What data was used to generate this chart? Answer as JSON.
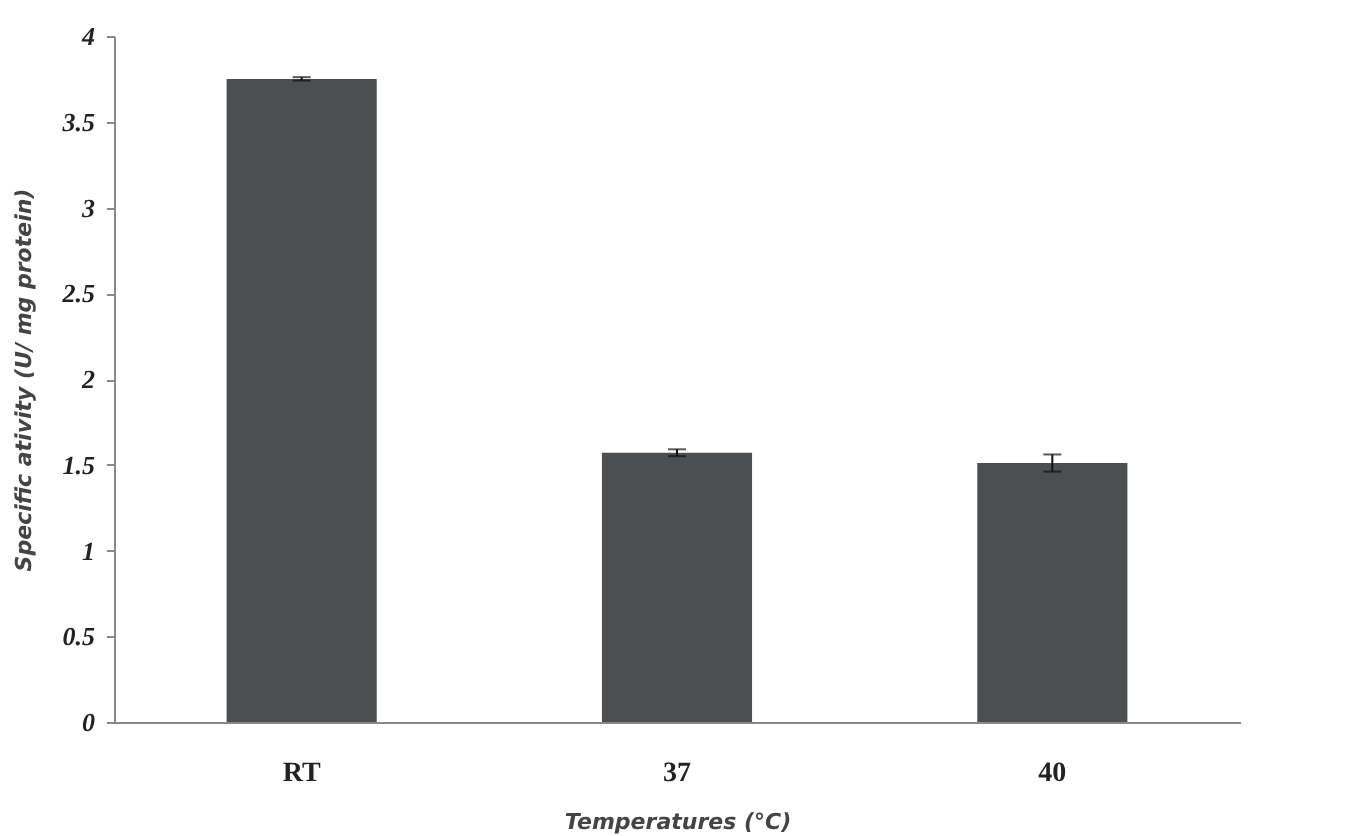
{
  "chart_data": {
    "type": "bar",
    "xlabel": "Temperatures (°C)",
    "ylabel": "Specific  ativity (U/ mg protein)",
    "categories": [
      "RT",
      "37",
      "40"
    ],
    "series": [
      {
        "color": "#4d4e50",
        "values": [
          3.75,
          1.57,
          1.51
        ],
        "errors": [
          0.01,
          0.02,
          0.05
        ]
      }
    ],
    "ylim": [
      0,
      4
    ],
    "yticks": [
      0,
      0.5,
      1,
      1.5,
      2,
      2.5,
      3,
      3.5,
      4
    ],
    "grid": false
  }
}
